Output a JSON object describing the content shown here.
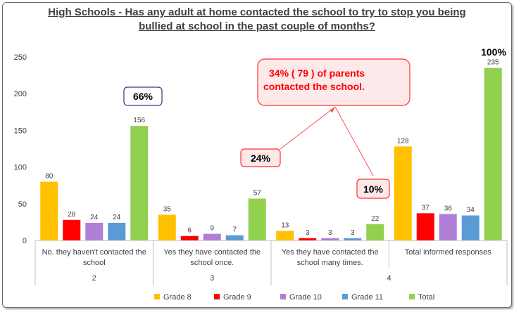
{
  "chart_data": {
    "type": "bar",
    "title_line1": "High Schools - Has any adult at home contacted the school to try to stop you being",
    "title_line2": "bullied at school in the past couple of months?",
    "categories": [
      [
        "No. they haven't contacted the",
        "school"
      ],
      [
        "Yes they have contacted the",
        "school once."
      ],
      [
        "Yes they have contacted the",
        "school many times."
      ],
      [
        "Total informed responses"
      ]
    ],
    "group_labels": [
      "2",
      "3",
      "4"
    ],
    "series": [
      {
        "name": "Grade 8",
        "color": "#FFC000",
        "values": [
          80,
          35,
          13,
          128
        ]
      },
      {
        "name": "Grade 9",
        "color": "#FF0000",
        "values": [
          28,
          6,
          3,
          37
        ]
      },
      {
        "name": "Grade 10",
        "color": "#B07FD8",
        "values": [
          24,
          9,
          3,
          36
        ]
      },
      {
        "name": "Grade 11",
        "color": "#5B9BD5",
        "values": [
          24,
          7,
          3,
          34
        ]
      },
      {
        "name": "Total",
        "color": "#92D050",
        "values": [
          156,
          57,
          22,
          235
        ]
      }
    ],
    "ylim": [
      0,
      250
    ],
    "yticks": [
      0,
      50,
      100,
      150,
      200,
      250
    ],
    "grid": false,
    "legend_position": "bottom",
    "annotations": {
      "pct_no": "66%",
      "pct_once": "24%",
      "pct_many": "10%",
      "pct_total": "100%",
      "parents_line1": "34% ( 79 ) of parents",
      "parents_line2": "contacted the school."
    }
  }
}
